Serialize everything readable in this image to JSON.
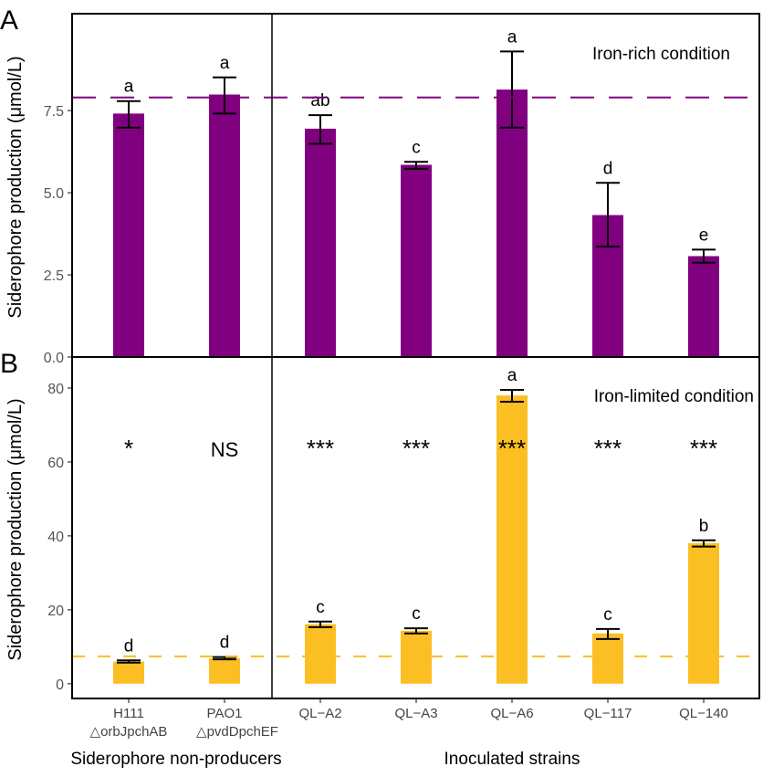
{
  "chart_data": [
    {
      "type": "bar",
      "panel_label": "A",
      "annotation": "Iron-rich condition",
      "ylabel": "Siderophore production (μmol/L)",
      "ylim": [
        0,
        10.45
      ],
      "yticks": [
        "0.0",
        "2.5",
        "5.0",
        "7.5"
      ],
      "ytick_values": [
        0,
        2.5,
        5,
        7.5
      ],
      "categories": [
        "H111",
        "PAO1",
        "QL−A2",
        "QL−A3",
        "QL−A6",
        "QL−117",
        "QL−140"
      ],
      "values": [
        7.41,
        7.99,
        6.95,
        5.85,
        8.14,
        4.32,
        3.07
      ],
      "error_low": [
        6.98,
        7.41,
        6.49,
        5.73,
        6.98,
        3.36,
        2.87
      ],
      "error_high": [
        7.79,
        8.51,
        7.36,
        5.94,
        9.3,
        5.3,
        3.27
      ],
      "letters": [
        "a",
        "a",
        "ab",
        "c",
        "a",
        "d",
        "e"
      ],
      "reference_line": 7.9,
      "color": "#800080",
      "grid": false
    },
    {
      "type": "bar",
      "panel_label": "B",
      "annotation": "Iron-limited condition",
      "ylabel": "Siderophore production (μmol/L)",
      "ylim": [
        -4,
        88.4
      ],
      "yticks": [
        "0",
        "20",
        "40",
        "60",
        "80"
      ],
      "ytick_values": [
        0,
        20,
        40,
        60,
        80
      ],
      "categories": [
        "H111",
        "PAO1",
        "QL−A2",
        "QL−A3",
        "QL−A6",
        "QL−117",
        "QL−140"
      ],
      "values": [
        6.0,
        6.9,
        16.1,
        14.3,
        78.0,
        13.6,
        38.0
      ],
      "error_low": [
        5.7,
        6.6,
        15.3,
        13.6,
        76.3,
        12.1,
        37.1
      ],
      "error_high": [
        6.3,
        7.2,
        16.8,
        15.0,
        79.5,
        14.8,
        38.8
      ],
      "letters": [
        "d",
        "d",
        "c",
        "c",
        "a",
        "c",
        "b"
      ],
      "significance": [
        "*",
        "NS",
        "***",
        "***",
        "***",
        "***",
        "***"
      ],
      "significance_level": 64,
      "reference_line": 7.4,
      "color": "#FBBF24",
      "grid": false
    }
  ],
  "x_axis": {
    "tick_labels": [
      "H111",
      "PAO1",
      "QL−A2",
      "QL−A3",
      "QL−A6",
      "QL−117",
      "QL−140"
    ],
    "sublabels": [
      "△orbJpchAB",
      "△pvdDpchEF"
    ],
    "group_labels": [
      "Siderophore non-producers",
      "Inoculated strains"
    ]
  }
}
